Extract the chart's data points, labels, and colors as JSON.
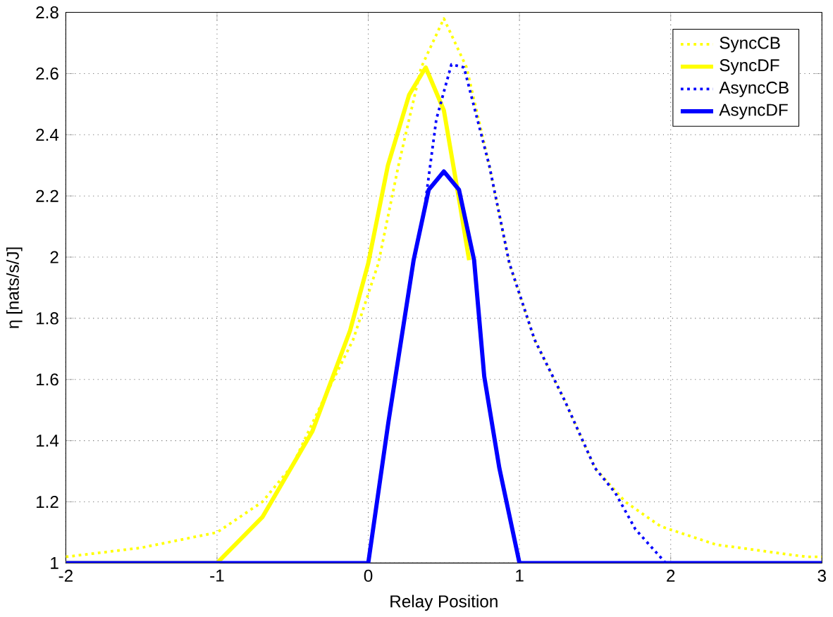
{
  "chart_data": {
    "type": "line",
    "xlabel": "Relay Position",
    "ylabel": "η [nats/s/J]",
    "xlim": [
      -2,
      3
    ],
    "ylim": [
      1,
      2.8
    ],
    "xticks": [
      -2,
      -1,
      0,
      1,
      2,
      3
    ],
    "yticks": [
      1,
      1.2,
      1.4,
      1.6,
      1.8,
      2,
      2.2,
      2.4,
      2.6,
      2.8
    ],
    "grid": true,
    "legend": "top right",
    "series": [
      {
        "name": "SyncCB",
        "color": "#ffff00",
        "line_style": "dotted",
        "x": [
          -2,
          -1.5,
          -1,
          -0.7,
          -0.5,
          -0.3,
          -0.1,
          0.067,
          0.2,
          0.35,
          0.5,
          0.65,
          0.8,
          0.933,
          1.1,
          1.3,
          1.5,
          1.7,
          1.933,
          2.3,
          2.9,
          3
        ],
        "values": [
          1.02,
          1.05,
          1.1,
          1.2,
          1.32,
          1.53,
          1.73,
          1.98,
          2.3,
          2.62,
          2.78,
          2.62,
          2.3,
          1.98,
          1.73,
          1.53,
          1.31,
          1.2,
          1.12,
          1.06,
          1.02,
          1.02
        ]
      },
      {
        "name": "SyncDF",
        "color": "#ffff00",
        "line_style": "solid",
        "x": [
          -2,
          -1,
          -0.7,
          -0.37,
          -0.12,
          0,
          0.13,
          0.27,
          0.38,
          0.5,
          0.6,
          0.667
        ],
        "values": [
          1,
          1,
          1.15,
          1.43,
          1.76,
          1.98,
          2.3,
          2.53,
          2.62,
          2.48,
          2.19,
          1.99
        ]
      },
      {
        "name": "AsyncCB",
        "color": "#0000ff",
        "line_style": "dotted",
        "x": [
          0,
          0.133,
          0.3,
          0.367,
          0.45,
          0.55,
          0.633,
          0.8,
          0.933,
          1.1,
          1.3,
          1.5,
          1.633,
          1.767,
          1.967
        ],
        "values": [
          1,
          1.46,
          1.99,
          2.14,
          2.45,
          2.63,
          2.62,
          2.3,
          1.98,
          1.73,
          1.53,
          1.31,
          1.23,
          1.11,
          1
        ]
      },
      {
        "name": "AsyncDF",
        "color": "#0000ff",
        "line_style": "solid",
        "x": [
          -2,
          0,
          0.133,
          0.3,
          0.4,
          0.5,
          0.6,
          0.7,
          0.767,
          0.867,
          1,
          3
        ],
        "values": [
          1,
          1,
          1.46,
          1.99,
          2.22,
          2.28,
          2.22,
          1.99,
          1.61,
          1.31,
          1,
          1
        ]
      }
    ]
  }
}
